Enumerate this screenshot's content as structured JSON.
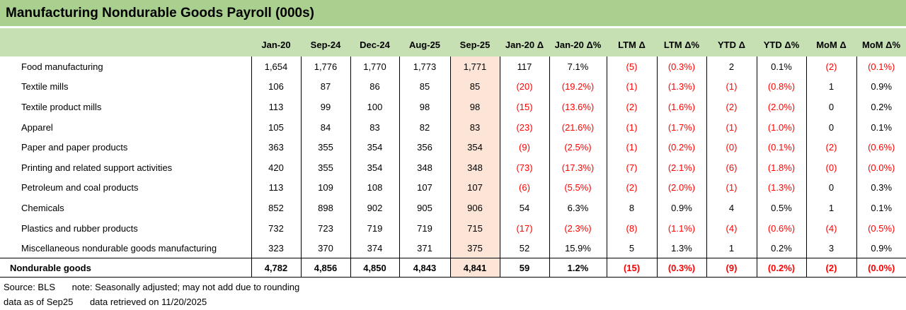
{
  "title": "Manufacturing Nondurable Goods Payroll (000s)",
  "chart_data": {
    "type": "table",
    "title": "Manufacturing Nondurable Goods Payroll (000s)",
    "columns": [
      "Jan-20",
      "Sep-24",
      "Dec-24",
      "Aug-25",
      "Sep-25",
      "Jan-20 Δ",
      "Jan-20 Δ%",
      "LTM Δ",
      "LTM Δ%",
      "YTD Δ",
      "YTD Δ%",
      "MoM Δ",
      "MoM Δ%"
    ],
    "highlight_column": "Sep-25",
    "rows": [
      {
        "label": "Food manufacturing",
        "values": [
          "1,654",
          "1,776",
          "1,770",
          "1,773",
          "1,771",
          "117",
          "7.1%",
          "(5)",
          "(0.3%)",
          "2",
          "0.1%",
          "(2)",
          "(0.1%)"
        ]
      },
      {
        "label": "Textile mills",
        "values": [
          "106",
          "87",
          "86",
          "85",
          "85",
          "(20)",
          "(19.2%)",
          "(1)",
          "(1.3%)",
          "(1)",
          "(0.8%)",
          "1",
          "0.9%"
        ]
      },
      {
        "label": "Textile product mills",
        "values": [
          "113",
          "99",
          "100",
          "98",
          "98",
          "(15)",
          "(13.6%)",
          "(2)",
          "(1.6%)",
          "(2)",
          "(2.0%)",
          "0",
          "0.2%"
        ]
      },
      {
        "label": "Apparel",
        "values": [
          "105",
          "84",
          "83",
          "82",
          "83",
          "(23)",
          "(21.6%)",
          "(1)",
          "(1.7%)",
          "(1)",
          "(1.0%)",
          "0",
          "0.1%"
        ]
      },
      {
        "label": "Paper and paper products",
        "values": [
          "363",
          "355",
          "354",
          "356",
          "354",
          "(9)",
          "(2.5%)",
          "(1)",
          "(0.2%)",
          "(0)",
          "(0.1%)",
          "(2)",
          "(0.6%)"
        ]
      },
      {
        "label": "Printing and related support activities",
        "values": [
          "420",
          "355",
          "354",
          "348",
          "348",
          "(73)",
          "(17.3%)",
          "(7)",
          "(2.1%)",
          "(6)",
          "(1.8%)",
          "(0)",
          "(0.0%)"
        ]
      },
      {
        "label": "Petroleum and coal products",
        "values": [
          "113",
          "109",
          "108",
          "107",
          "107",
          "(6)",
          "(5.5%)",
          "(2)",
          "(2.0%)",
          "(1)",
          "(1.3%)",
          "0",
          "0.3%"
        ]
      },
      {
        "label": "Chemicals",
        "values": [
          "852",
          "898",
          "902",
          "905",
          "906",
          "54",
          "6.3%",
          "8",
          "0.9%",
          "4",
          "0.5%",
          "1",
          "0.1%"
        ]
      },
      {
        "label": "Plastics and rubber products",
        "values": [
          "732",
          "723",
          "719",
          "719",
          "715",
          "(17)",
          "(2.3%)",
          "(8)",
          "(1.1%)",
          "(4)",
          "(0.6%)",
          "(4)",
          "(0.5%)"
        ]
      },
      {
        "label": "Miscellaneous nondurable goods manufacturing",
        "values": [
          "323",
          "370",
          "374",
          "371",
          "375",
          "52",
          "15.9%",
          "5",
          "1.3%",
          "1",
          "0.2%",
          "3",
          "0.9%"
        ]
      }
    ],
    "total": {
      "label": "Nondurable goods",
      "values": [
        "4,782",
        "4,856",
        "4,850",
        "4,843",
        "4,841",
        "59",
        "1.2%",
        "(15)",
        "(0.3%)",
        "(9)",
        "(0.2%)",
        "(2)",
        "(0.0%)"
      ]
    }
  },
  "footer": {
    "source": "Source: BLS",
    "note": "note: Seasonally adjusted; may not add due to rounding",
    "as_of": "data as of Sep25",
    "retrieved": "data retrieved on 11/20/2025"
  },
  "colors": {
    "title_bg": "#a9d08e",
    "header_bg": "#c6e0b4",
    "highlight_bg": "#fce4d6",
    "negative": "#ff0000",
    "border": "#000000"
  }
}
